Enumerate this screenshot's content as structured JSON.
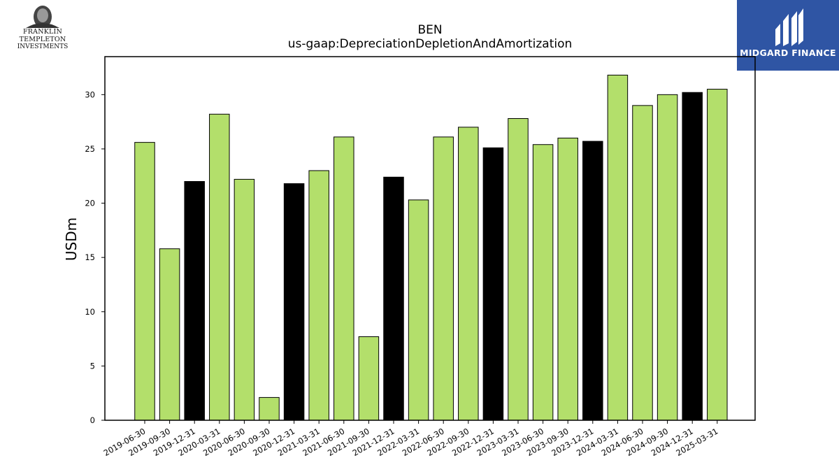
{
  "logos": {
    "left_line1": "FRANKLIN TEMPLETON",
    "left_line2": "INVESTMENTS",
    "right_text": "MIDGARD FINANCE",
    "right_bg_color": "#2f55a4"
  },
  "chart_data": {
    "type": "bar",
    "title": "BEN",
    "subtitle": "us-gaap:DepreciationDepletionAndAmortization",
    "xlabel": "",
    "ylabel": "USDm",
    "ylim": [
      0,
      33.5
    ],
    "yticks": [
      0,
      5,
      10,
      15,
      20,
      25,
      30
    ],
    "grid": false,
    "colors": {
      "quarter": "#b3df6b",
      "fiscal_year_end": "#000000",
      "edge": "#000000"
    },
    "categories": [
      "2019-06-30",
      "2019-09-30",
      "2019-12-31",
      "2020-03-31",
      "2020-06-30",
      "2020-09-30",
      "2020-12-31",
      "2021-03-31",
      "2021-06-30",
      "2021-09-30",
      "2021-12-31",
      "2022-03-31",
      "2022-06-30",
      "2022-09-30",
      "2022-12-31",
      "2023-03-31",
      "2023-06-30",
      "2023-09-30",
      "2023-12-31",
      "2024-03-31",
      "2024-06-30",
      "2024-09-30",
      "2024-12-31",
      "2025-03-31"
    ],
    "values": [
      25.6,
      15.8,
      22.0,
      28.2,
      22.2,
      2.1,
      21.8,
      23.0,
      26.1,
      7.7,
      22.4,
      20.3,
      26.1,
      27.0,
      25.1,
      27.8,
      25.4,
      26.0,
      25.7,
      31.8,
      29.0,
      30.0,
      30.2,
      30.5
    ],
    "highlight": [
      false,
      false,
      true,
      false,
      false,
      false,
      true,
      false,
      false,
      false,
      true,
      false,
      false,
      false,
      true,
      false,
      false,
      false,
      true,
      false,
      false,
      false,
      true,
      false
    ]
  }
}
